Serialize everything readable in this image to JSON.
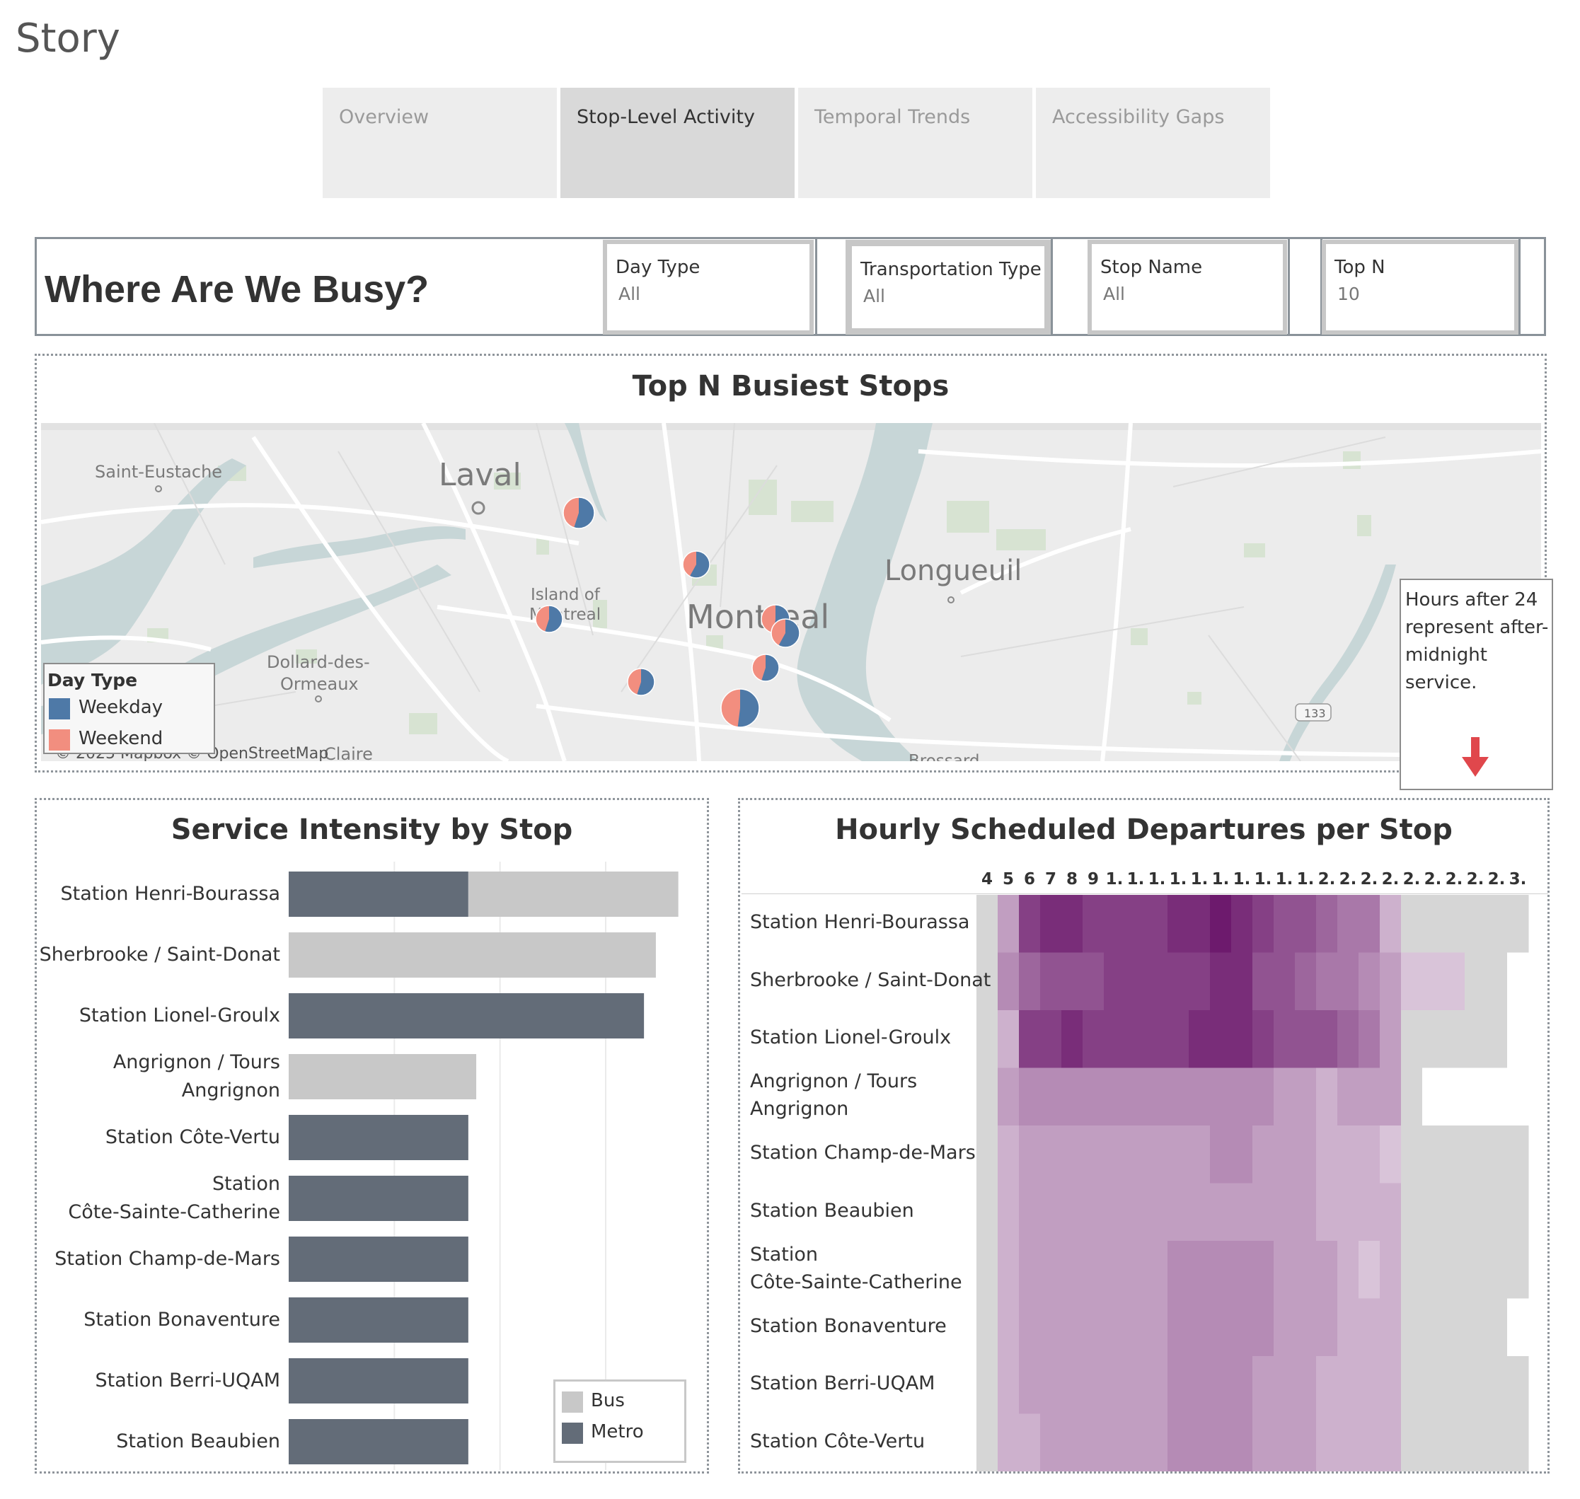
{
  "story": {
    "title": "Story",
    "tabs": [
      "Overview",
      "Stop-Level Activity",
      "Temporal Trends",
      "Accessibility Gaps"
    ],
    "active_tab": 1
  },
  "dashboard": {
    "title": "Where Are We Busy?",
    "filters": [
      {
        "label": "Day Type",
        "value": "All"
      },
      {
        "label": "Transportation Type",
        "value": "All"
      },
      {
        "label": "Stop Name",
        "value": "All"
      },
      {
        "label": "Top N",
        "value": "10"
      }
    ]
  },
  "map": {
    "title": "Top N Busiest Stops",
    "place_labels": [
      "Saint-Eustache",
      "Laval",
      "Island of",
      "Montreal",
      "Montreal",
      "Longueuil",
      "Dollard-des-",
      "Ormeaux",
      "Claire",
      "Brossard",
      "133"
    ],
    "attribution": "© 2025 Mapbox © OpenStreetMap",
    "legend_title": "Day Type",
    "legend_items": [
      {
        "label": "Weekday",
        "color": "#4e79a7"
      },
      {
        "label": "Weekend",
        "color": "#f28e7f"
      }
    ],
    "note": "Hours after 24 represent after-midnight service.",
    "pies": [
      {
        "weekday_share": 0.55
      },
      {
        "weekday_share": 0.58
      },
      {
        "weekday_share": 0.55
      },
      {
        "weekday_share": 0.52
      },
      {
        "weekday_share": 0.58
      },
      {
        "weekday_share": 0.55
      },
      {
        "weekday_share": 0.55
      },
      {
        "weekday_share": 0.52
      }
    ]
  },
  "chart_data": [
    {
      "type": "bar",
      "title": "Service Intensity by Stop",
      "orientation": "horizontal",
      "categories": [
        "Station Henri-Bourassa",
        "Sherbrooke / Saint-Donat",
        "Station Lionel-Groulx",
        "Angrignon / Tours Angrignon",
        "Station Côte-Vertu",
        "Station Côte-Sainte-Catherine",
        "Station Champ-de-Mars",
        "Station Bonaventure",
        "Station Berri-UQAM",
        "Station Beaubien"
      ],
      "category_lines": [
        [
          "Station Henri-Bourassa"
        ],
        [
          "Sherbrooke / Saint-Donat"
        ],
        [
          "Station Lionel-Groulx"
        ],
        [
          "Angrignon / Tours",
          "Angrignon"
        ],
        [
          "Station Côte-Vertu"
        ],
        [
          "Station",
          "Côte-Sainte-Catherine"
        ],
        [
          "Station Champ-de-Mars"
        ],
        [
          "Station Bonaventure"
        ],
        [
          "Station Berri-UQAM"
        ],
        [
          "Station Beaubien"
        ]
      ],
      "series": [
        {
          "name": "Metro",
          "color": "#636c78",
          "values": [
            1360,
            0,
            2690,
            0,
            1360,
            1360,
            1360,
            1360,
            1360,
            1360
          ]
        },
        {
          "name": "Bus",
          "color": "#c8c8c8",
          "values": [
            1590,
            2780,
            0,
            1420,
            0,
            0,
            0,
            0,
            0,
            0
          ]
        }
      ],
      "xlim": [
        0,
        3000
      ],
      "gridlines": [
        800,
        1600,
        2400
      ],
      "legend": [
        {
          "label": "Bus",
          "color": "#c8c8c8"
        },
        {
          "label": "Metro",
          "color": "#636c78"
        }
      ]
    },
    {
      "type": "heatmap",
      "title": "Hourly Scheduled Departures per Stop",
      "columns": [
        "4",
        "5",
        "6",
        "7",
        "8",
        "9",
        "1.",
        "1.",
        "1.",
        "1.",
        "1.",
        "1.",
        "1.",
        "1.",
        "1.",
        "1.",
        "2.",
        "2.",
        "2.",
        "2.",
        "2.",
        "2.",
        "2.",
        "2.",
        "2.",
        "3."
      ],
      "rows": [
        "Station Henri-Bourassa",
        "Sherbrooke / Saint-Donat",
        "Station Lionel-Groulx",
        "Angrignon / Tours Angrignon",
        "Station Champ-de-Mars",
        "Station Beaubien",
        "Station Côte-Sainte-Catherine",
        "Station Bonaventure",
        "Station Berri-UQAM",
        "Station Côte-Vertu"
      ],
      "row_lines": [
        [
          "Station Henri-Bourassa"
        ],
        [
          "Sherbrooke / Saint-Donat"
        ],
        [
          "Station Lionel-Groulx"
        ],
        [
          "Angrignon / Tours",
          "Angrignon"
        ],
        [
          "Station Champ-de-Mars"
        ],
        [
          "Station Beaubien"
        ],
        [
          "Station",
          "Côte-Sainte-Catherine"
        ],
        [
          "Station Bonaventure"
        ],
        [
          "Station Berri-UQAM"
        ],
        [
          "Station Côte-Vertu"
        ]
      ],
      "values": [
        [
          0,
          3,
          8,
          9,
          9,
          8,
          8,
          8,
          8,
          9,
          9,
          10,
          9,
          8,
          7,
          7,
          6,
          5,
          5,
          2,
          0,
          0,
          0,
          0,
          0,
          0
        ],
        [
          0,
          4,
          6,
          7,
          7,
          7,
          8,
          8,
          8,
          8,
          8,
          9,
          9,
          7,
          7,
          6,
          5,
          5,
          4,
          3,
          1,
          1,
          1,
          0,
          0,
          -1
        ],
        [
          0,
          2,
          8,
          8,
          9,
          8,
          8,
          8,
          8,
          8,
          9,
          9,
          9,
          8,
          7,
          7,
          7,
          6,
          5,
          3,
          0,
          0,
          0,
          0,
          0,
          -1
        ],
        [
          0,
          3,
          4,
          4,
          4,
          4,
          4,
          4,
          4,
          4,
          4,
          4,
          4,
          4,
          3,
          3,
          2,
          3,
          3,
          3,
          0,
          -1,
          -1,
          -1,
          -1,
          -1
        ],
        [
          0,
          2,
          3,
          3,
          3,
          3,
          3,
          3,
          3,
          3,
          3,
          4,
          4,
          3,
          3,
          3,
          2,
          2,
          2,
          1,
          0,
          0,
          0,
          0,
          0,
          0
        ],
        [
          0,
          2,
          3,
          3,
          3,
          3,
          3,
          3,
          3,
          3,
          3,
          3,
          3,
          3,
          3,
          3,
          2,
          2,
          2,
          2,
          0,
          0,
          0,
          0,
          0,
          0
        ],
        [
          0,
          2,
          3,
          3,
          3,
          3,
          3,
          3,
          3,
          4,
          4,
          4,
          4,
          4,
          3,
          3,
          3,
          2,
          1,
          2,
          0,
          0,
          0,
          0,
          0,
          0
        ],
        [
          0,
          2,
          3,
          3,
          3,
          3,
          3,
          3,
          3,
          4,
          4,
          4,
          4,
          4,
          3,
          3,
          3,
          2,
          2,
          2,
          0,
          0,
          0,
          0,
          0,
          -1
        ],
        [
          0,
          2,
          3,
          3,
          3,
          3,
          3,
          3,
          3,
          4,
          4,
          4,
          4,
          3,
          3,
          3,
          2,
          2,
          2,
          2,
          0,
          0,
          0,
          0,
          0,
          0
        ],
        [
          0,
          2,
          2,
          3,
          3,
          3,
          3,
          3,
          3,
          4,
          4,
          4,
          4,
          3,
          3,
          3,
          2,
          2,
          2,
          2,
          0,
          0,
          0,
          0,
          0,
          0
        ]
      ],
      "scale": "0 = no service (grey), -1 = no data (white), 1–10 purple intensity"
    }
  ],
  "colors": {
    "metro": "#636c78",
    "bus": "#c8c8c8",
    "weekday": "#4e79a7",
    "weekend": "#f28e7f",
    "heat_low": "#d9c4d9",
    "heat_high": "#6d1a6d",
    "no_service": "#d6d6d6",
    "note_arrow": "#e0474c"
  }
}
